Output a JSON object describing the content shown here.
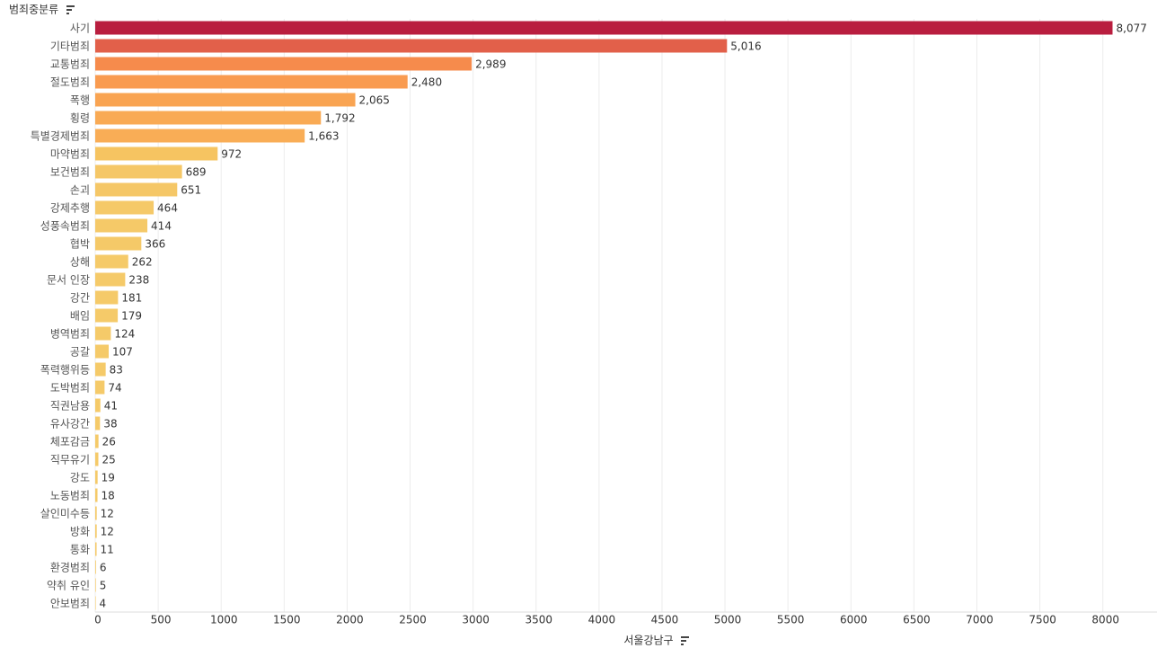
{
  "chart_data": {
    "type": "hbar",
    "y_label": "범죄중분류",
    "x_label": "서울강남구",
    "categories": [
      "사기",
      "기타범죄",
      "교통범죄",
      "절도범죄",
      "폭행",
      "횡령",
      "특별경제범죄",
      "마약범죄",
      "보건범죄",
      "손괴",
      "강제추행",
      "성풍속범죄",
      "협박",
      "상해",
      "문서 인장",
      "강간",
      "배임",
      "병역범죄",
      "공갈",
      "폭력행위등",
      "도박범죄",
      "직권남용",
      "유사강간",
      "체포감금",
      "직무유기",
      "강도",
      "노동범죄",
      "살인미수등",
      "방화",
      "통화",
      "환경범죄",
      "약취 유인",
      "안보범죄"
    ],
    "values": [
      8077,
      5016,
      2989,
      2480,
      2065,
      1792,
      1663,
      972,
      689,
      651,
      464,
      414,
      366,
      262,
      238,
      181,
      179,
      124,
      107,
      83,
      74,
      41,
      38,
      26,
      25,
      19,
      18,
      12,
      12,
      11,
      6,
      5,
      4
    ],
    "value_labels": [
      "8,077",
      "5,016",
      "2,989",
      "2,480",
      "2,065",
      "1,792",
      "1,663",
      "972",
      "689",
      "651",
      "464",
      "414",
      "366",
      "262",
      "238",
      "181",
      "179",
      "124",
      "107",
      "83",
      "74",
      "41",
      "38",
      "26",
      "25",
      "19",
      "18",
      "12",
      "12",
      "11",
      "6",
      "5",
      "4"
    ],
    "colors": [
      "#b91e3f",
      "#e2604a",
      "#f68b4c",
      "#f99b50",
      "#f9a452",
      "#f9aa54",
      "#f9ad56",
      "#f6c461",
      "#f5c767",
      "#f5c767",
      "#f5c968",
      "#f5c968",
      "#f5c968",
      "#f5ca69",
      "#f5ca69",
      "#f5ca69",
      "#f5ca69",
      "#f5ca69",
      "#f5ca69",
      "#f5ca69",
      "#f5ca69",
      "#f5ca69",
      "#f5ca69",
      "#f5ca69",
      "#f5ca69",
      "#f5ca69",
      "#f5ca69",
      "#f5ca69",
      "#f5ca69",
      "#f5ca69",
      "#f5ca69",
      "#f5ca69",
      "#f5ca69"
    ],
    "xlim": [
      0,
      8430
    ],
    "xticks": [
      0,
      500,
      1000,
      1500,
      2000,
      2500,
      3000,
      3500,
      4000,
      4500,
      5000,
      5500,
      6000,
      6500,
      7000,
      7500,
      8000
    ],
    "grid": true
  }
}
